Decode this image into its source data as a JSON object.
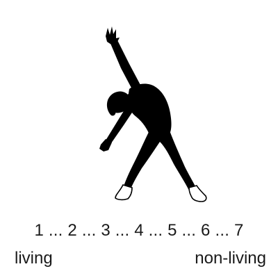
{
  "scale": {
    "points": [
      "1",
      "2",
      "3",
      "4",
      "5",
      "6",
      "7"
    ],
    "separator": " ... ",
    "left_label": "living",
    "right_label": "non-living"
  },
  "figure": {
    "fill_color": "#000000",
    "shoe_color": "#ffffff"
  }
}
